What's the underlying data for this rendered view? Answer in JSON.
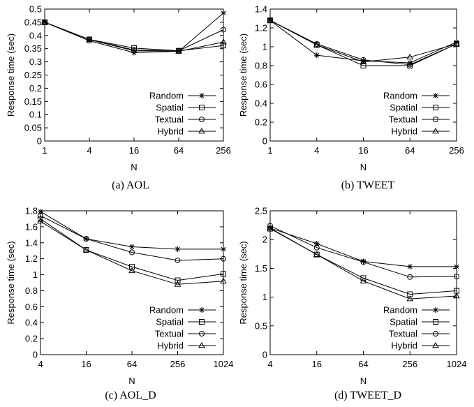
{
  "chart_data": [
    {
      "id": "aol",
      "type": "line",
      "caption": "(a)  AOL",
      "xlabel": "N",
      "ylabel": "Response time (sec)",
      "x": [
        1,
        4,
        16,
        64,
        256
      ],
      "x_tick_labels": [
        "1",
        "4",
        "16",
        "64",
        "256"
      ],
      "x_scale": "log2",
      "ylim": [
        0,
        0.5
      ],
      "y_ticks": [
        0,
        0.05,
        0.1,
        0.15,
        0.2,
        0.25,
        0.3,
        0.35,
        0.4,
        0.45,
        0.5
      ],
      "y_tick_labels": [
        "0",
        "0.05",
        "0.1",
        "0.15",
        "0.2",
        "0.25",
        "0.3",
        "0.35",
        "0.4",
        "0.45",
        "0.5"
      ],
      "legend_position": "bottom-right",
      "grid": false,
      "series": [
        {
          "name": "Random",
          "marker": "star",
          "values": [
            0.45,
            0.38,
            0.335,
            0.34,
            0.485
          ]
        },
        {
          "name": "Spatial",
          "marker": "square",
          "values": [
            0.45,
            0.385,
            0.352,
            0.342,
            0.362
          ]
        },
        {
          "name": "Textual",
          "marker": "circle",
          "values": [
            0.45,
            0.385,
            0.345,
            0.342,
            0.422
          ]
        },
        {
          "name": "Hybrid",
          "marker": "triangle",
          "values": [
            0.45,
            0.384,
            0.342,
            0.34,
            0.375
          ]
        }
      ]
    },
    {
      "id": "tweet",
      "type": "line",
      "caption": "(b)  TWEET",
      "xlabel": "N",
      "ylabel": "Response time (sec)",
      "x": [
        1,
        4,
        16,
        64,
        256
      ],
      "x_tick_labels": [
        "1",
        "4",
        "16",
        "64",
        "256"
      ],
      "x_scale": "log2",
      "ylim": [
        0,
        1.4
      ],
      "y_ticks": [
        0,
        0.2,
        0.4,
        0.6,
        0.8,
        1,
        1.2,
        1.4
      ],
      "y_tick_labels": [
        "0",
        "0.2",
        "0.4",
        "0.6",
        "0.8",
        "1",
        "1.2",
        "1.4"
      ],
      "legend_position": "bottom-right",
      "grid": false,
      "series": [
        {
          "name": "Random",
          "marker": "star",
          "values": [
            1.28,
            0.91,
            0.85,
            0.83,
            1.05
          ]
        },
        {
          "name": "Spatial",
          "marker": "square",
          "values": [
            1.28,
            1.02,
            0.8,
            0.8,
            1.03
          ]
        },
        {
          "name": "Textual",
          "marker": "circle",
          "values": [
            1.28,
            1.03,
            0.86,
            0.81,
            1.03
          ]
        },
        {
          "name": "Hybrid",
          "marker": "triangle",
          "values": [
            1.28,
            1.02,
            0.84,
            0.89,
            1.03
          ]
        }
      ]
    },
    {
      "id": "aol_d",
      "type": "line",
      "caption": "(c)  AOL_D",
      "xlabel": "N",
      "ylabel": "Response time (sec)",
      "x": [
        4,
        16,
        64,
        256,
        1024
      ],
      "x_tick_labels": [
        "4",
        "16",
        "64",
        "256",
        "1024"
      ],
      "x_scale": "log2",
      "ylim": [
        0,
        1.8
      ],
      "y_ticks": [
        0,
        0.2,
        0.4,
        0.6,
        0.8,
        1,
        1.2,
        1.4,
        1.6,
        1.8
      ],
      "y_tick_labels": [
        "0",
        "0.2",
        "0.4",
        "0.6",
        "0.8",
        "1",
        "1.2",
        "1.4",
        "1.6",
        "1.8"
      ],
      "legend_position": "bottom-right",
      "grid": false,
      "series": [
        {
          "name": "Random",
          "marker": "star",
          "values": [
            1.79,
            1.45,
            1.35,
            1.32,
            1.32
          ]
        },
        {
          "name": "Spatial",
          "marker": "square",
          "values": [
            1.7,
            1.31,
            1.1,
            0.93,
            1.01
          ]
        },
        {
          "name": "Textual",
          "marker": "circle",
          "values": [
            1.74,
            1.45,
            1.28,
            1.18,
            1.2
          ]
        },
        {
          "name": "Hybrid",
          "marker": "triangle",
          "values": [
            1.67,
            1.31,
            1.05,
            0.88,
            0.92
          ]
        }
      ]
    },
    {
      "id": "tweet_d",
      "type": "line",
      "caption": "(d)  TWEET_D",
      "xlabel": "N",
      "ylabel": "Response time (sec)",
      "x": [
        4,
        16,
        64,
        256,
        1024
      ],
      "x_tick_labels": [
        "4",
        "16",
        "64",
        "256",
        "1024"
      ],
      "x_scale": "log2",
      "ylim": [
        0,
        2.5
      ],
      "y_ticks": [
        0,
        0.5,
        1,
        1.5,
        2,
        2.5
      ],
      "y_tick_labels": [
        "0",
        "0.5",
        "1",
        "1.5",
        "2",
        "2.5"
      ],
      "legend_position": "bottom-right",
      "grid": false,
      "series": [
        {
          "name": "Random",
          "marker": "star",
          "values": [
            2.2,
            1.93,
            1.62,
            1.53,
            1.53
          ]
        },
        {
          "name": "Spatial",
          "marker": "square",
          "values": [
            2.19,
            1.74,
            1.33,
            1.05,
            1.11
          ]
        },
        {
          "name": "Textual",
          "marker": "circle",
          "values": [
            2.24,
            1.86,
            1.61,
            1.35,
            1.36
          ]
        },
        {
          "name": "Hybrid",
          "marker": "triangle",
          "values": [
            2.2,
            1.74,
            1.28,
            0.97,
            1.02
          ]
        }
      ]
    }
  ]
}
